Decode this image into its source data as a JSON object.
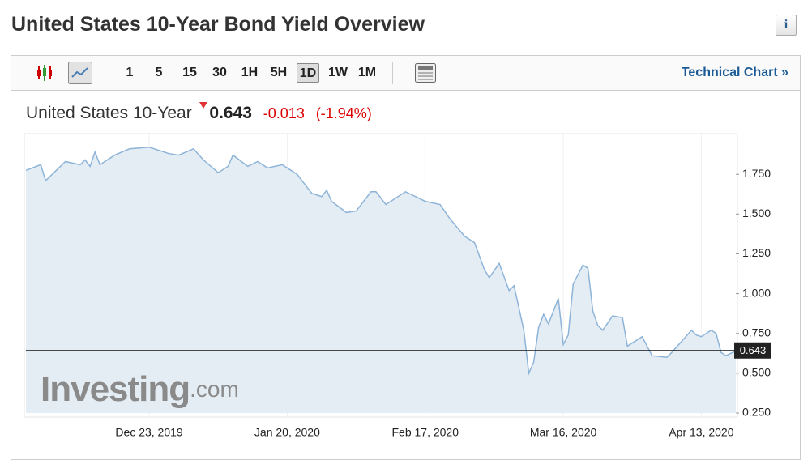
{
  "header": {
    "title": "United States 10-Year Bond Yield Overview"
  },
  "toolbar": {
    "intervals": [
      "1",
      "5",
      "15",
      "30",
      "1H",
      "5H",
      "1D",
      "1W",
      "1M"
    ],
    "active_interval": 6,
    "link": "Technical Chart »"
  },
  "quote": {
    "name": "United States 10-Year",
    "price": 0.643,
    "change": -0.013,
    "change_percent": "(-1.94%)"
  },
  "watermark": {
    "brand": "Investing",
    "suffix": ".com"
  },
  "chart_data": {
    "type": "line",
    "color": "#8db4d8",
    "fill": "#e5edf4",
    "grid": true,
    "x": [
      "2019-11-28",
      "2019-12-01",
      "2019-12-02",
      "2019-12-04",
      "2019-12-06",
      "2019-12-09",
      "2019-12-10",
      "2019-12-11",
      "2019-12-12",
      "2019-12-13",
      "2019-12-16",
      "2019-12-19",
      "2019-12-23",
      "2019-12-27",
      "2019-12-29",
      "2020-01-01",
      "2020-01-03",
      "2020-01-06",
      "2020-01-08",
      "2020-01-09",
      "2020-01-12",
      "2020-01-14",
      "2020-01-16",
      "2020-01-19",
      "2020-01-22",
      "2020-01-25",
      "2020-01-27",
      "2020-01-28",
      "2020-01-29",
      "2020-02-01",
      "2020-02-03",
      "2020-02-06",
      "2020-02-07",
      "2020-02-09",
      "2020-02-13",
      "2020-02-17",
      "2020-02-20",
      "2020-02-22",
      "2020-02-25",
      "2020-02-27",
      "2020-02-29",
      "2020-03-01",
      "2020-03-03",
      "2020-03-05",
      "2020-03-06",
      "2020-03-08",
      "2020-03-09",
      "2020-03-10",
      "2020-03-11",
      "2020-03-12",
      "2020-03-13",
      "2020-03-15",
      "2020-03-16",
      "2020-03-17",
      "2020-03-18",
      "2020-03-20",
      "2020-03-21",
      "2020-03-22",
      "2020-03-23",
      "2020-03-24",
      "2020-03-26",
      "2020-03-28",
      "2020-03-29",
      "2020-04-01",
      "2020-04-03",
      "2020-04-06",
      "2020-04-07",
      "2020-04-11",
      "2020-04-12",
      "2020-04-13",
      "2020-04-15",
      "2020-04-16",
      "2020-04-17",
      "2020-04-18",
      "2020-04-20"
    ],
    "values": [
      1.775,
      1.81,
      1.71,
      1.77,
      1.83,
      1.81,
      1.84,
      1.8,
      1.89,
      1.81,
      1.87,
      1.91,
      1.92,
      1.88,
      1.87,
      1.91,
      1.84,
      1.76,
      1.8,
      1.87,
      1.8,
      1.83,
      1.79,
      1.81,
      1.75,
      1.63,
      1.61,
      1.65,
      1.58,
      1.51,
      1.52,
      1.64,
      1.64,
      1.56,
      1.64,
      1.58,
      1.56,
      1.47,
      1.36,
      1.32,
      1.15,
      1.1,
      1.19,
      1.02,
      1.05,
      0.77,
      0.5,
      0.57,
      0.79,
      0.87,
      0.81,
      0.97,
      0.68,
      0.74,
      1.06,
      1.18,
      1.16,
      0.89,
      0.8,
      0.77,
      0.86,
      0.85,
      0.67,
      0.73,
      0.61,
      0.6,
      0.63,
      0.77,
      0.74,
      0.73,
      0.77,
      0.75,
      0.63,
      0.61,
      0.64
    ],
    "xlim": [
      "2019-11-28",
      "2020-04-20"
    ],
    "xticks": [
      {
        "value": "2019-12-23",
        "label": "Dec 23, 2019"
      },
      {
        "value": "2020-01-20",
        "label": "Jan 20, 2020"
      },
      {
        "value": "2020-02-17",
        "label": "Feb 17, 2020"
      },
      {
        "value": "2020-03-16",
        "label": "Mar 16, 2020"
      },
      {
        "value": "2020-04-13",
        "label": "Apr 13, 2020"
      }
    ],
    "ylim": [
      0.25,
      1.98
    ],
    "yticks": [
      {
        "value": 0.25,
        "label": "0.250"
      },
      {
        "value": 0.5,
        "label": "0.500"
      },
      {
        "value": 0.75,
        "label": "0.750"
      },
      {
        "value": 1,
        "label": "1.000"
      },
      {
        "value": 1.25,
        "label": "1.250"
      },
      {
        "value": 1.5,
        "label": "1.500"
      },
      {
        "value": 1.75,
        "label": "1.750"
      }
    ],
    "price_line": 0.643
  }
}
